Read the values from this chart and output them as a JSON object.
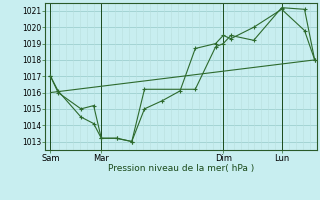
{
  "xlabel": "Pression niveau de la mer( hPa )",
  "bg_color": "#c8eef0",
  "grid_color_major": "#9ecfcf",
  "grid_color_minor": "#b8dede",
  "line_color": "#2d6a2d",
  "ylim": [
    1012.5,
    1021.5
  ],
  "yticks": [
    1013,
    1014,
    1015,
    1016,
    1017,
    1018,
    1019,
    1020,
    1021
  ],
  "xtick_labels": [
    "Sam",
    "Mar",
    "Dim",
    "Lun"
  ],
  "xtick_positions": [
    0,
    20,
    68,
    91
  ],
  "vline_positions": [
    0,
    20,
    68,
    91
  ],
  "xlim": [
    -2,
    105
  ],
  "line1_x": [
    0,
    3,
    12,
    17,
    20,
    26,
    32,
    37,
    44,
    51,
    57,
    65,
    68,
    71,
    80,
    91,
    100,
    104
  ],
  "line1_y": [
    1017.0,
    1016.1,
    1014.5,
    1014.1,
    1013.2,
    1013.2,
    1013.0,
    1015.0,
    1015.5,
    1016.1,
    1018.7,
    1019.0,
    1019.5,
    1019.3,
    1020.0,
    1021.1,
    1019.8,
    1018.0
  ],
  "line2_x": [
    0,
    3,
    12,
    17,
    20,
    26,
    32,
    37,
    57,
    65,
    68,
    71,
    80,
    91,
    100,
    104
  ],
  "line2_y": [
    1017.0,
    1016.0,
    1015.0,
    1015.2,
    1013.2,
    1013.2,
    1013.0,
    1016.2,
    1016.2,
    1018.8,
    1019.0,
    1019.5,
    1019.2,
    1021.2,
    1021.1,
    1018.0
  ],
  "line3_x": [
    0,
    104
  ],
  "line3_y": [
    1016.0,
    1018.0
  ]
}
